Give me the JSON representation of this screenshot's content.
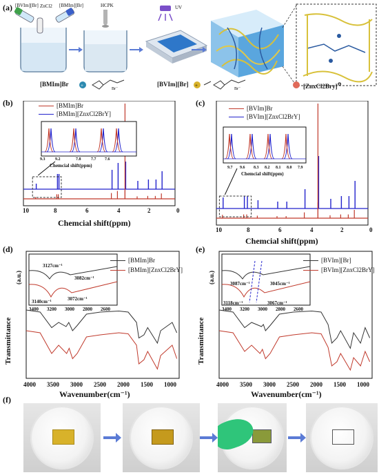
{
  "panels": {
    "a": {
      "label": "(a)",
      "reagents": [
        "[BVIm][Br]",
        "ZnCl2",
        "[BMIm][Br]",
        "HCPK",
        "UV"
      ],
      "legend": [
        "[BMIm]Br",
        "[BVIm][Br]",
        "[ZnxCl2Bry]"
      ],
      "legend_suffix": "⊖"
    },
    "b": {
      "label": "(b)",
      "legend": [
        "[BMIm]Br",
        "[BMIm][ZnxCl2BrY]"
      ],
      "inset_ticks": [
        "9.3",
        "9.2",
        "7.8",
        "7.7",
        "7.6"
      ],
      "inset_xlabel": "Chemcial shift(ppm)",
      "xticks": [
        "10",
        "8",
        "6",
        "4",
        "2",
        "0"
      ],
      "xlabel": "Chemcial shift(ppm)"
    },
    "c": {
      "label": "(c)",
      "legend": [
        "[BVIm]Br",
        "[BVIm][ZnxCl2BrY]"
      ],
      "inset_ticks": [
        "9.7",
        "9.6",
        "8.3",
        "8.2",
        "8.1",
        "8.0",
        "7.9"
      ],
      "inset_xlabel": "Chemcial shift(ppm)",
      "xticks": [
        "10",
        "8",
        "6",
        "4",
        "2",
        "0"
      ],
      "xlabel": "Chemcial shift(ppm)"
    },
    "d": {
      "label": "(d)",
      "legend": [
        "[BMIm]Br",
        "[BMIm][ZnxCl2BrY]"
      ],
      "inset_annotations": [
        "3127cm⁻¹",
        "3082cm⁻¹",
        "3140cm⁻¹",
        "3072cm⁻¹"
      ],
      "inset_ticks": [
        "3400",
        "3200",
        "3000",
        "2800",
        "2600"
      ],
      "xticks": [
        "4000",
        "3500",
        "3000",
        "2500",
        "2000",
        "1500",
        "1000"
      ],
      "xlabel": "Wavenumber(cm⁻¹)",
      "ylabel": "Transmittance",
      "yunit": "(a.u.)"
    },
    "e": {
      "label": "(e)",
      "legend": [
        "[BVIm][Br]",
        "[BVIm][ZnxCl2BrY]"
      ],
      "inset_annotations": [
        "3087cm⁻¹",
        "3045cm⁻¹",
        "3118cm⁻¹",
        "3067cm⁻¹"
      ],
      "inset_ticks": [
        "3400",
        "3200",
        "3000",
        "2800",
        "2600"
      ],
      "xticks": [
        "4000",
        "3500",
        "3000",
        "2500",
        "2000",
        "1500",
        "1000"
      ],
      "xlabel": "Wavenumber(cm⁻¹)",
      "ylabel": "Transmittance",
      "yunit": "(a.u.)"
    },
    "f": {
      "label": "(f)"
    }
  },
  "colors": {
    "red": "#c0392b",
    "blue": "#2222cc",
    "black": "#333333",
    "arrow": "#5b7bd5",
    "gel": "#2e77c9",
    "hydrogel": "#b5d7ef",
    "yellow": "#d8b22a",
    "glove": "#2fc57a"
  },
  "chart_data": [
    {
      "type": "line",
      "panel": "b",
      "title": "",
      "xlabel": "Chemcial shift(ppm)",
      "xlim": [
        10,
        0
      ],
      "series": [
        {
          "name": "[BMIm]Br",
          "peaks_ppm": [
            9.2,
            7.8,
            7.7,
            4.2,
            3.8,
            3.3,
            2.5,
            1.8,
            1.3,
            0.9
          ]
        },
        {
          "name": "[BMIm][ZnxCl2BrY]",
          "peaks_ppm": [
            9.2,
            7.8,
            7.7,
            4.2,
            3.8,
            3.3,
            2.5,
            1.8,
            1.3,
            0.9
          ]
        }
      ]
    },
    {
      "type": "line",
      "panel": "c",
      "title": "",
      "xlabel": "Chemcial shift(ppm)",
      "xlim": [
        10,
        0
      ],
      "series": [
        {
          "name": "[BVIm]Br",
          "peaks_ppm": [
            9.6,
            8.2,
            8.0,
            7.3,
            6.0,
            5.4,
            4.2,
            3.3,
            2.5,
            1.8,
            1.3,
            0.9
          ]
        },
        {
          "name": "[BVIm][ZnxCl2BrY]",
          "peaks_ppm": [
            9.6,
            8.2,
            8.0,
            7.3,
            6.0,
            5.4,
            4.2,
            3.3,
            2.5,
            1.8,
            1.3,
            0.9
          ]
        }
      ]
    },
    {
      "type": "line",
      "panel": "d",
      "title": "",
      "xlabel": "Wavenumber(cm⁻¹)",
      "ylabel": "Transmittance (a.u.)",
      "xlim": [
        4000,
        700
      ],
      "series": [
        {
          "name": "[BMIm]Br",
          "x": [
            4000,
            3700,
            3450,
            3300,
            3140,
            3082,
            3000,
            2900,
            2700,
            2400,
            2000,
            1800,
            1620,
            1570,
            1460,
            1380,
            1170,
            1100,
            850,
            750
          ],
          "y": [
            0.62,
            0.6,
            0.45,
            0.5,
            0.46,
            0.5,
            0.42,
            0.47,
            0.58,
            0.6,
            0.61,
            0.6,
            0.5,
            0.35,
            0.38,
            0.45,
            0.3,
            0.42,
            0.5,
            0.4
          ]
        },
        {
          "name": "[BMIm][ZnxCl2BrY]",
          "x": [
            4000,
            3700,
            3450,
            3300,
            3127,
            3072,
            3000,
            2900,
            2700,
            2400,
            2000,
            1800,
            1620,
            1570,
            1460,
            1380,
            1170,
            1100,
            850,
            750
          ],
          "y": [
            0.42,
            0.4,
            0.2,
            0.28,
            0.2,
            0.25,
            0.15,
            0.2,
            0.36,
            0.38,
            0.4,
            0.39,
            0.28,
            0.1,
            0.14,
            0.22,
            0.05,
            0.18,
            0.28,
            0.15
          ]
        }
      ]
    },
    {
      "type": "line",
      "panel": "e",
      "title": "",
      "xlabel": "Wavenumber(cm⁻¹)",
      "ylabel": "Transmittance (a.u.)",
      "xlim": [
        4000,
        700
      ],
      "series": [
        {
          "name": "[BVIm][Br]",
          "x": [
            4000,
            3700,
            3450,
            3300,
            3087,
            3045,
            3000,
            2900,
            2700,
            2400,
            2000,
            1800,
            1650,
            1570,
            1460,
            1380,
            1170,
            1100,
            950,
            850,
            750
          ],
          "y": [
            0.62,
            0.6,
            0.45,
            0.5,
            0.46,
            0.48,
            0.42,
            0.47,
            0.58,
            0.6,
            0.61,
            0.6,
            0.48,
            0.3,
            0.35,
            0.42,
            0.25,
            0.4,
            0.3,
            0.45,
            0.35
          ]
        },
        {
          "name": "[BVIm][ZnxCl2BrY]",
          "x": [
            4000,
            3700,
            3450,
            3300,
            3118,
            3067,
            3000,
            2900,
            2700,
            2400,
            2000,
            1800,
            1650,
            1570,
            1460,
            1380,
            1170,
            1100,
            950,
            850,
            750
          ],
          "y": [
            0.42,
            0.4,
            0.22,
            0.28,
            0.2,
            0.24,
            0.15,
            0.2,
            0.36,
            0.38,
            0.4,
            0.39,
            0.26,
            0.08,
            0.12,
            0.2,
            0.04,
            0.16,
            0.08,
            0.22,
            0.12
          ]
        }
      ]
    }
  ]
}
